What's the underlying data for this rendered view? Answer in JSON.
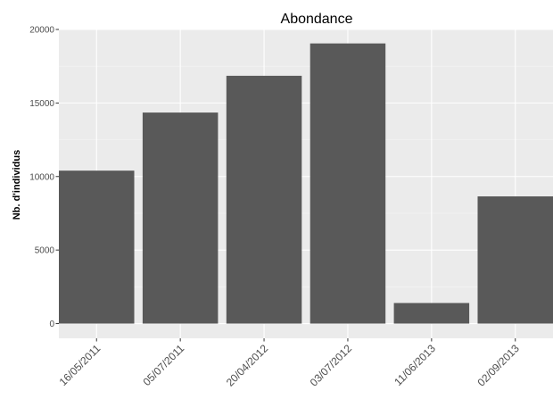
{
  "chart_data": {
    "type": "bar",
    "title": "Abondance",
    "xlabel": "",
    "ylabel": "Nb. d'individus",
    "categories": [
      "16/05/2011",
      "05/07/2011",
      "20/04/2012",
      "03/07/2012",
      "11/06/2013",
      "02/09/2013"
    ],
    "values": [
      10400,
      14350,
      16850,
      19050,
      1400,
      8650
    ],
    "ylim": [
      0,
      20000
    ],
    "yticks": [
      0,
      5000,
      10000,
      15000,
      20000
    ],
    "ytick_labels": [
      "0",
      "5000",
      "10000",
      "15000",
      "20000"
    ],
    "grid": true,
    "legend": "none",
    "colors": {
      "bar": "#595959",
      "panel_background": "#ebebeb",
      "grid_major": "#ffffff",
      "grid_minor": "#f5f5f5"
    }
  }
}
